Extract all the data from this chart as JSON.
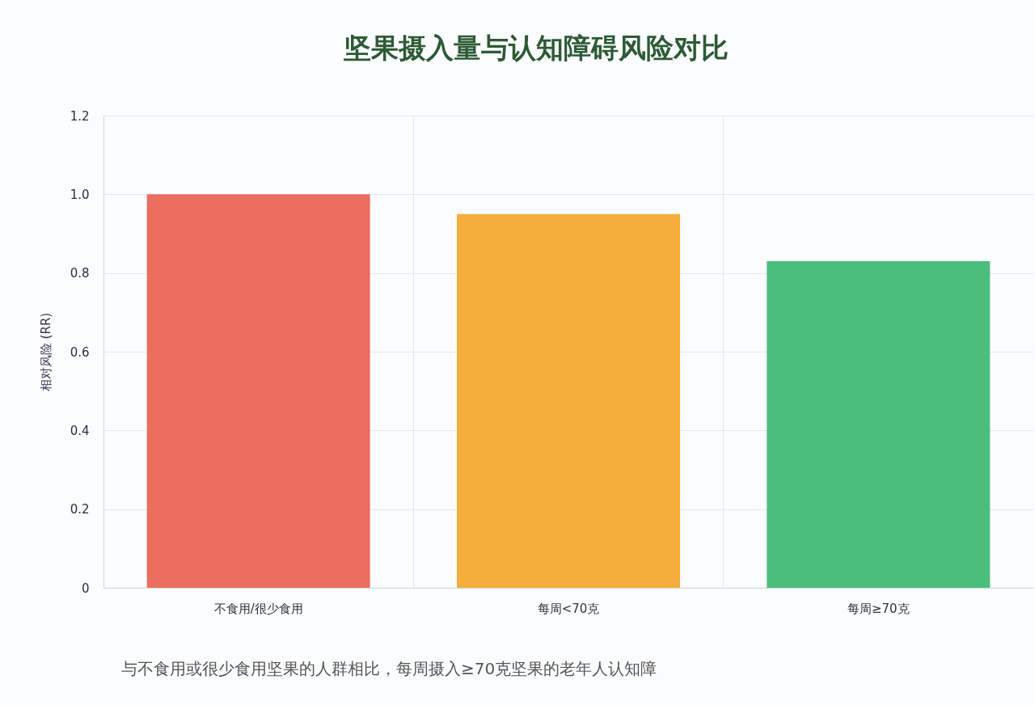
{
  "chart_data": {
    "type": "bar",
    "title": "坚果摄入量与认知障碍风险对比",
    "ylabel": "相对风险 (RR)",
    "categories": [
      "不食用/很少食用",
      "每周<70克",
      "每周≥70克"
    ],
    "values": [
      1.0,
      0.95,
      0.83
    ],
    "colors": [
      "#eb6e5f",
      "#f5ae3c",
      "#4cbe7c"
    ],
    "ylim": [
      0,
      1.2
    ],
    "yticks": [
      0,
      0.2,
      0.4,
      0.6,
      0.8,
      {
        "value": 1,
        "label": "1.0"
      },
      1.2
    ],
    "grid": true,
    "annotations": [
      "与不食用或很少食用坚果的人群相比，每周摄入≥70克坚果的老年人认知障"
    ]
  }
}
